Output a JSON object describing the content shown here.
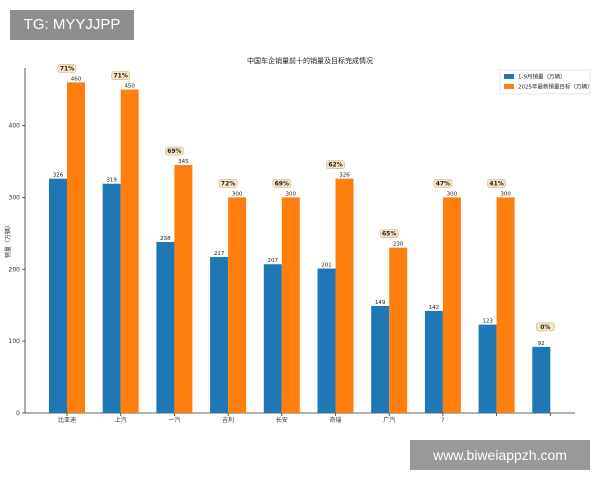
{
  "watermark_top": "TG: MYYJJPP",
  "watermark_bottom": "www.biweiappzh.com",
  "chart_data": {
    "type": "bar",
    "title": "中国车企销量前十的销量及目标完成情况",
    "ylabel": "销量（万辆）",
    "xlabel": "",
    "ylim": [
      0,
      480
    ],
    "yticks": [
      0,
      100,
      200,
      300,
      400
    ],
    "categories": [
      "比亚迪",
      "上汽",
      "一汽",
      "吉利",
      "长安",
      "奇瑞",
      "广汽",
      "?",
      "",
      ""
    ],
    "series": [
      {
        "name": "1-9月销量（万辆）",
        "color": "#1f77b4",
        "values": [
          326,
          319,
          238,
          217,
          207,
          201,
          149,
          142,
          123,
          92
        ]
      },
      {
        "name": "2025年最新销量目标（万辆）",
        "color": "#ff7f0e",
        "values": [
          460,
          450,
          345,
          300,
          300,
          326,
          230,
          300,
          300,
          null
        ]
      }
    ],
    "completion_labels": [
      "71%",
      "71%",
      "69%",
      "72%",
      "69%",
      "62%",
      "65%",
      "47%",
      "41%",
      "0%"
    ],
    "legend_position": "top-right",
    "grid": false
  }
}
